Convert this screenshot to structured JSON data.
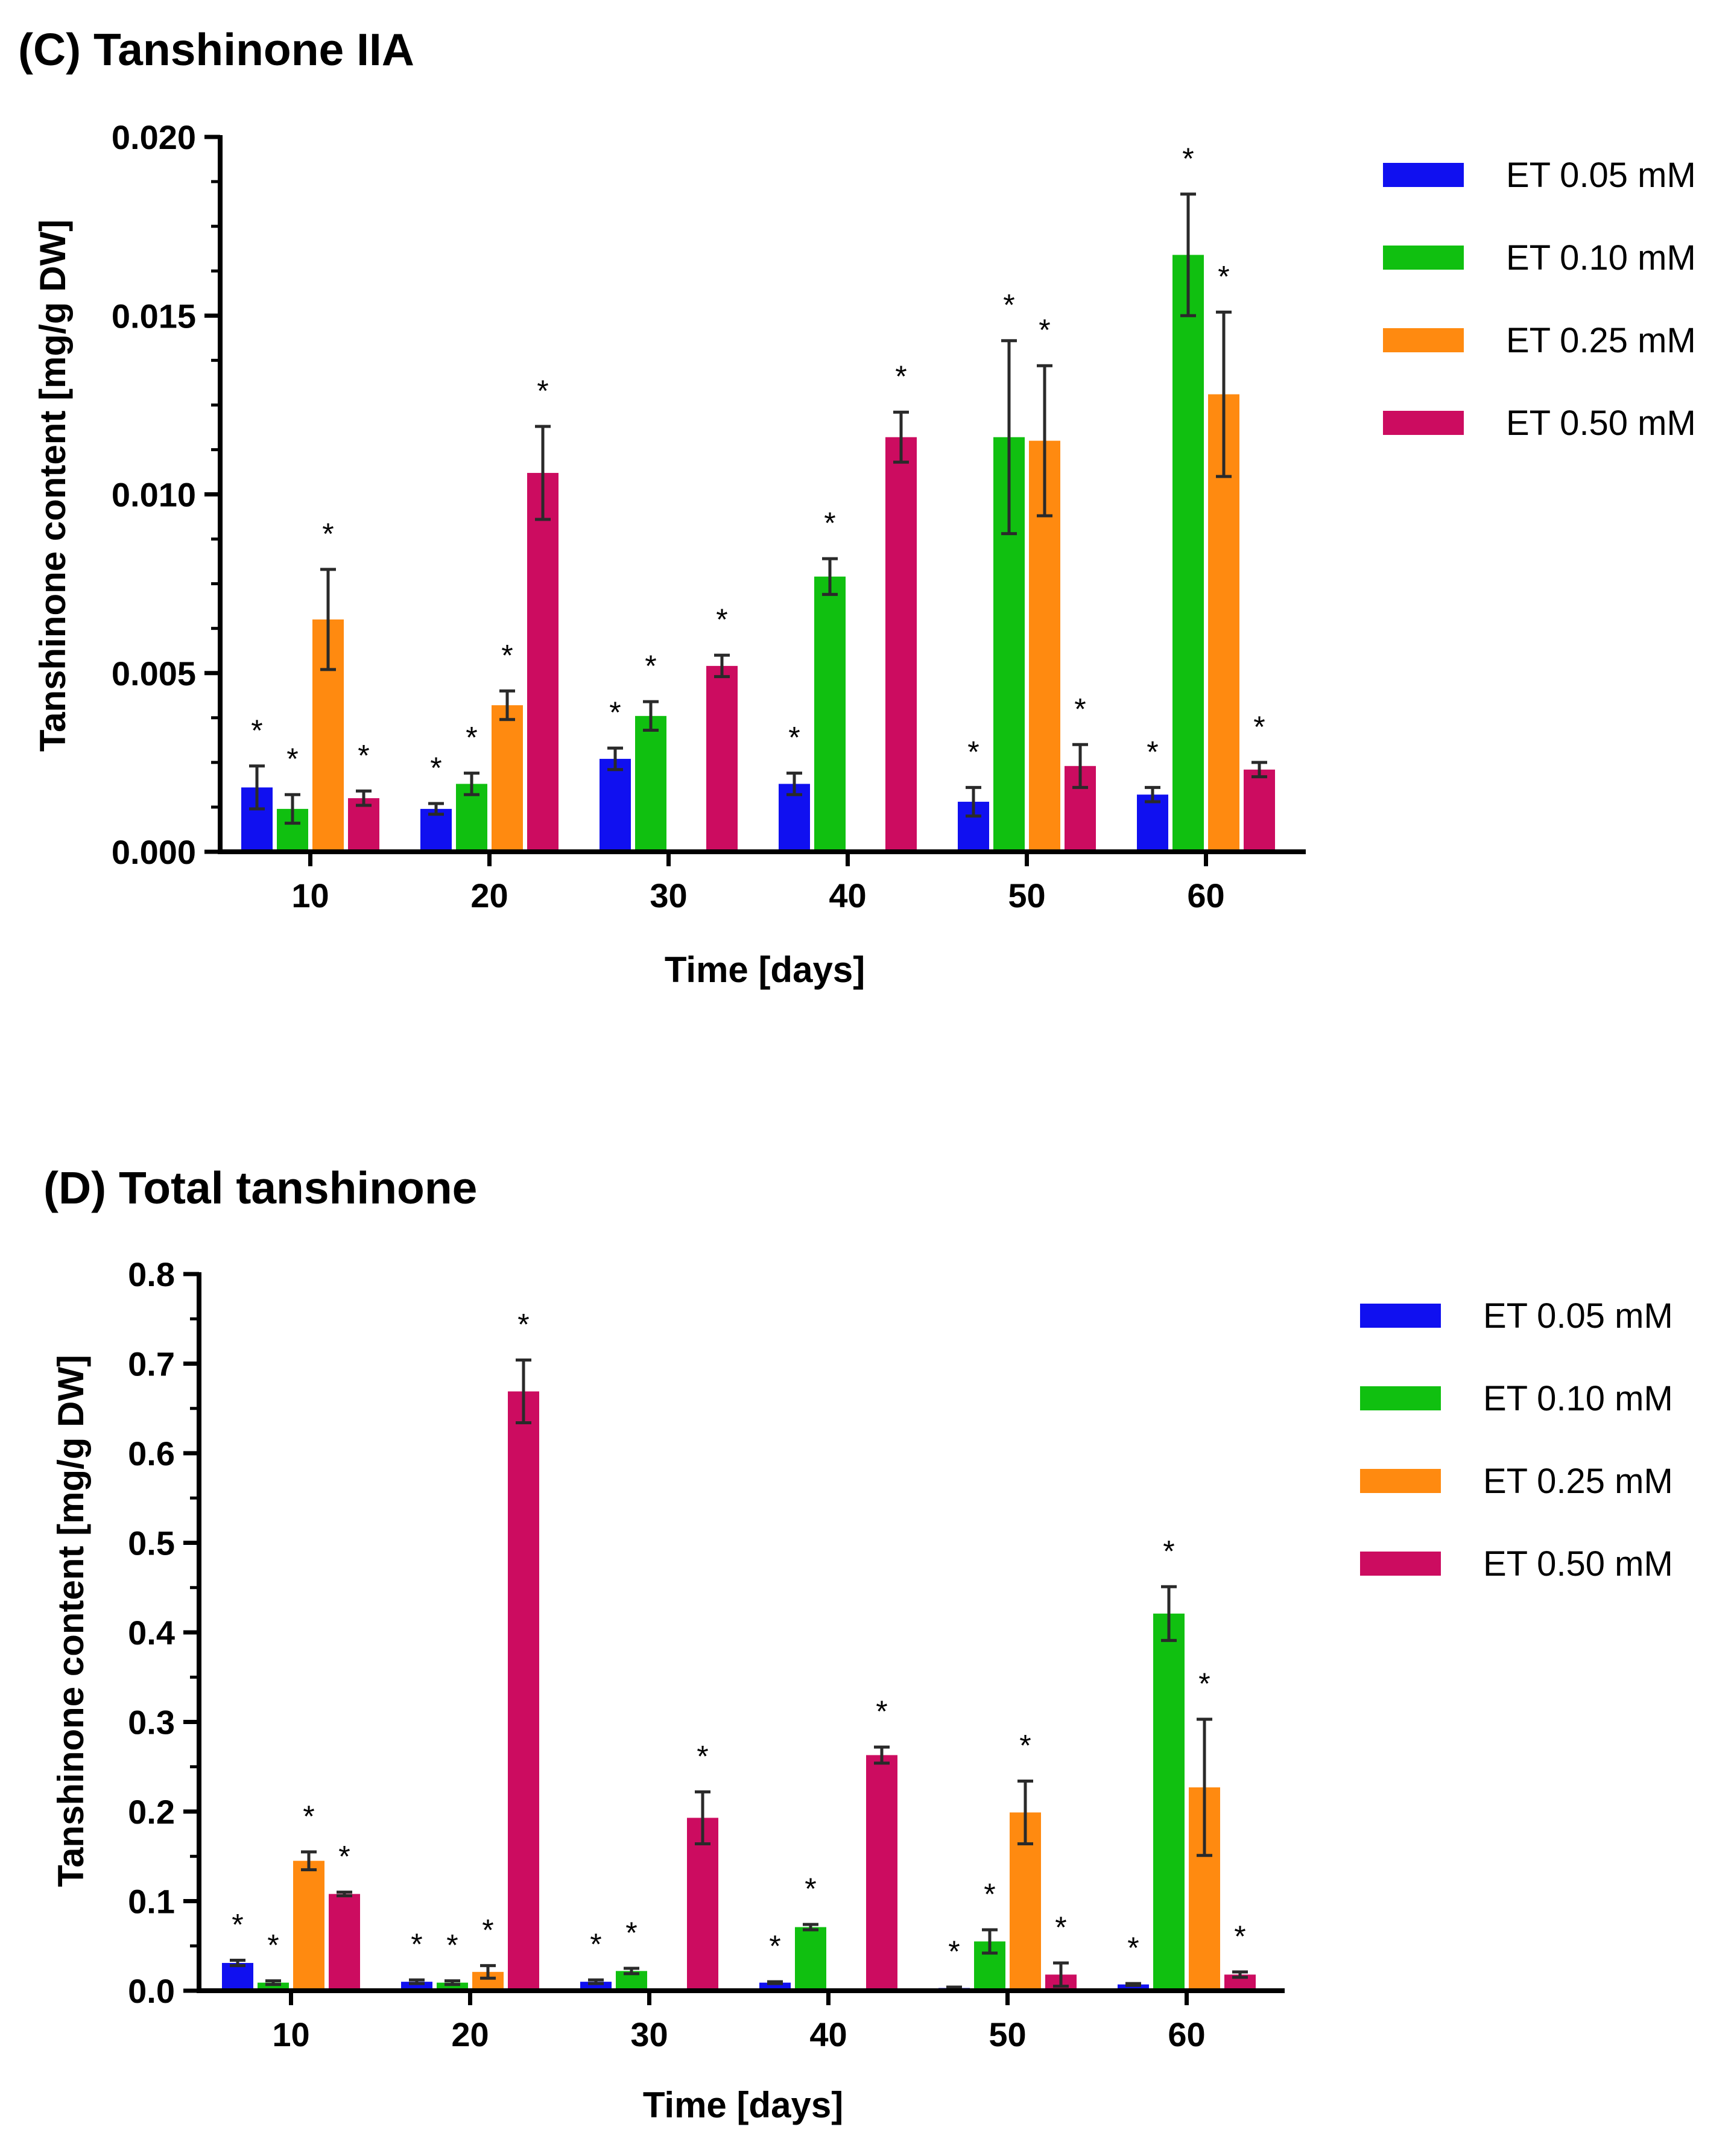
{
  "colors": {
    "ET 0.05 mM": "#1010f0",
    "ET 0.10 mM": "#10c010",
    "ET 0.25 mM": "#ff8a10",
    "ET 0.50 mM": "#cc0c60",
    "axis": "#000000",
    "error_bar": "#2a2a2a"
  },
  "chart_data": [
    {
      "id": "panelC",
      "type": "bar",
      "title": "(C) Tanshinone IIA",
      "xlabel": "Time [days]",
      "ylabel": "Tanshinone content [mg/g DW]",
      "categories": [
        "10",
        "20",
        "30",
        "40",
        "50",
        "60"
      ],
      "ylim": [
        0,
        0.02
      ],
      "yticks": [
        "0.000",
        "0.005",
        "0.010",
        "0.015",
        "0.020"
      ],
      "grid": false,
      "legend_position": "right",
      "series": [
        {
          "name": "ET 0.05 mM",
          "values": [
            0.0018,
            0.0012,
            0.0026,
            0.0019,
            0.0014,
            0.0016
          ],
          "errors": [
            0.0006,
            0.00015,
            0.0003,
            0.0003,
            0.0004,
            0.0002
          ],
          "significant": [
            true,
            true,
            true,
            true,
            true,
            true
          ]
        },
        {
          "name": "ET 0.10 mM",
          "values": [
            0.0012,
            0.0019,
            0.0038,
            0.0077,
            0.0116,
            0.0167
          ],
          "errors": [
            0.0004,
            0.0003,
            0.0004,
            0.0005,
            0.0027,
            0.0017
          ],
          "significant": [
            true,
            true,
            true,
            true,
            true,
            true
          ]
        },
        {
          "name": "ET 0.25 mM",
          "values": [
            0.0065,
            0.0041,
            0.0,
            0.0,
            0.0115,
            0.0128
          ],
          "errors": [
            0.0014,
            0.0004,
            0.0,
            0.0,
            0.0021,
            0.0023
          ],
          "significant": [
            true,
            true,
            false,
            false,
            true,
            true
          ]
        },
        {
          "name": "ET 0.50 mM",
          "values": [
            0.0015,
            0.0106,
            0.0052,
            0.0116,
            0.0024,
            0.0023
          ],
          "errors": [
            0.0002,
            0.0013,
            0.0003,
            0.0007,
            0.0006,
            0.0002
          ],
          "significant": [
            true,
            true,
            true,
            true,
            true,
            true
          ]
        }
      ],
      "annotation": "*"
    },
    {
      "id": "panelD",
      "type": "bar",
      "title": "(D) Total tanshinone",
      "xlabel": "Time [days]",
      "ylabel": "Tanshinone content [mg/g DW]",
      "categories": [
        "10",
        "20",
        "30",
        "40",
        "50",
        "60"
      ],
      "ylim": [
        0,
        0.8
      ],
      "yticks": [
        "0.0",
        "0.1",
        "0.2",
        "0.3",
        "0.4",
        "0.5",
        "0.6",
        "0.7",
        "0.8"
      ],
      "grid": false,
      "legend_position": "right",
      "series": [
        {
          "name": "ET 0.05 mM",
          "values": [
            0.031,
            0.01,
            0.01,
            0.009,
            0.003,
            0.007
          ],
          "errors": [
            0.003,
            0.002,
            0.002,
            0.001,
            0.001,
            0.001
          ],
          "significant": [
            true,
            true,
            true,
            true,
            true,
            true
          ]
        },
        {
          "name": "ET 0.10 mM",
          "values": [
            0.009,
            0.009,
            0.022,
            0.071,
            0.055,
            0.421
          ],
          "errors": [
            0.002,
            0.002,
            0.003,
            0.003,
            0.013,
            0.03
          ],
          "significant": [
            true,
            true,
            true,
            true,
            true,
            true
          ]
        },
        {
          "name": "ET 0.25 mM",
          "values": [
            0.145,
            0.021,
            0.0,
            0.0,
            0.199,
            0.227
          ],
          "errors": [
            0.01,
            0.007,
            0.0,
            0.0,
            0.035,
            0.076
          ],
          "significant": [
            true,
            true,
            false,
            false,
            true,
            true
          ]
        },
        {
          "name": "ET 0.50 mM",
          "values": [
            0.108,
            0.669,
            0.193,
            0.263,
            0.018,
            0.018
          ],
          "errors": [
            0.002,
            0.035,
            0.029,
            0.009,
            0.013,
            0.003
          ],
          "significant": [
            true,
            true,
            true,
            true,
            true,
            true
          ]
        }
      ],
      "annotation": "*"
    }
  ]
}
